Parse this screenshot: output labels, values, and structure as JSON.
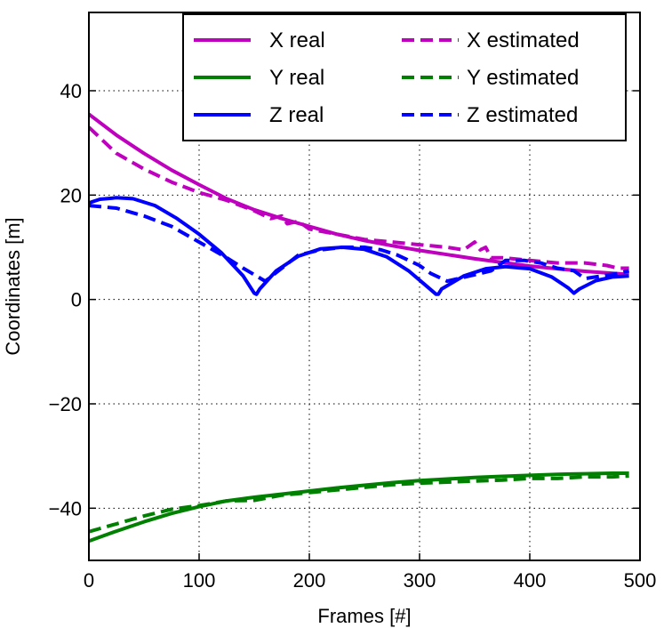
{
  "chart_data": {
    "type": "line",
    "title": "",
    "xlabel": "Frames [#]",
    "ylabel": "Coordinates [m]",
    "xlim": [
      0,
      500
    ],
    "ylim": [
      -50,
      55
    ],
    "xticks": [
      0,
      100,
      200,
      300,
      400,
      500
    ],
    "yticks": [
      -40,
      -20,
      0,
      20,
      40
    ],
    "xtick_labels": [
      "0",
      "100",
      "200",
      "300",
      "400",
      "500"
    ],
    "ytick_labels": [
      "−40",
      "−20",
      "0",
      "20",
      "40"
    ],
    "grid": true,
    "legend_position": "top-right",
    "series": [
      {
        "name": "X real",
        "color": "#bf00bf",
        "style": "solid",
        "x": [
          0,
          25,
          50,
          75,
          100,
          125,
          150,
          175,
          200,
          225,
          250,
          275,
          300,
          325,
          350,
          375,
          400,
          425,
          450,
          475,
          490
        ],
        "y": [
          35.5,
          31.5,
          28.0,
          24.8,
          22.0,
          19.3,
          17.2,
          15.5,
          14.0,
          12.5,
          11.3,
          10.3,
          9.4,
          8.6,
          7.8,
          7.1,
          6.4,
          5.9,
          5.4,
          5.0,
          4.8
        ]
      },
      {
        "name": "X estimated",
        "color": "#bf00bf",
        "style": "dashed",
        "x": [
          0,
          25,
          50,
          75,
          100,
          125,
          150,
          165,
          175,
          180,
          190,
          200,
          225,
          250,
          275,
          300,
          325,
          340,
          350,
          355,
          360,
          365,
          375,
          400,
          425,
          450,
          470,
          480,
          490
        ],
        "y": [
          33.0,
          28.0,
          25.0,
          22.5,
          20.5,
          19.0,
          17.0,
          15.5,
          16.0,
          14.5,
          15.0,
          13.5,
          12.5,
          11.5,
          11.0,
          10.5,
          10.0,
          9.5,
          11.0,
          9.5,
          10.0,
          8.0,
          8.0,
          7.5,
          7.0,
          7.0,
          6.5,
          6.0,
          6.0
        ]
      },
      {
        "name": "Y real",
        "color": "#008000",
        "style": "solid",
        "x": [
          0,
          25,
          50,
          75,
          100,
          125,
          150,
          175,
          200,
          225,
          250,
          275,
          300,
          325,
          350,
          375,
          400,
          425,
          450,
          475,
          490
        ],
        "y": [
          -46.3,
          -44.4,
          -42.6,
          -41.0,
          -39.7,
          -38.6,
          -37.9,
          -37.3,
          -36.7,
          -36.1,
          -35.6,
          -35.1,
          -34.7,
          -34.4,
          -34.1,
          -33.9,
          -33.7,
          -33.5,
          -33.4,
          -33.3,
          -33.3
        ]
      },
      {
        "name": "Y estimated",
        "color": "#008000",
        "style": "dashed",
        "x": [
          0,
          25,
          50,
          75,
          100,
          125,
          150,
          175,
          200,
          225,
          250,
          275,
          300,
          325,
          350,
          375,
          400,
          425,
          450,
          475,
          490
        ],
        "y": [
          -44.5,
          -43.0,
          -41.5,
          -40.2,
          -39.5,
          -38.6,
          -38.5,
          -37.5,
          -37.0,
          -36.5,
          -36.0,
          -35.5,
          -35.2,
          -35.0,
          -34.8,
          -34.6,
          -34.3,
          -34.3,
          -34.0,
          -34.0,
          -33.8
        ]
      },
      {
        "name": "Z real",
        "color": "#0000ff",
        "style": "solid",
        "x": [
          0,
          10,
          25,
          40,
          60,
          80,
          100,
          120,
          140,
          150,
          152,
          155,
          170,
          190,
          210,
          230,
          250,
          270,
          290,
          305,
          315,
          317,
          320,
          340,
          360,
          378,
          400,
          420,
          435,
          440,
          445,
          460,
          475,
          490
        ],
        "y": [
          18.5,
          19.2,
          19.5,
          19.3,
          18.0,
          15.5,
          12.5,
          9.0,
          4.5,
          1.2,
          1.0,
          2.0,
          5.5,
          8.3,
          9.7,
          10.0,
          9.6,
          8.2,
          5.5,
          2.8,
          1.0,
          1.0,
          2.0,
          4.5,
          5.9,
          6.3,
          5.9,
          4.3,
          2.2,
          1.2,
          2.0,
          3.6,
          4.3,
          4.5
        ]
      },
      {
        "name": "Z estimated",
        "color": "#0000ff",
        "style": "dashed",
        "x": [
          0,
          25,
          50,
          75,
          100,
          125,
          140,
          148,
          160,
          175,
          190,
          210,
          230,
          250,
          265,
          280,
          300,
          310,
          325,
          345,
          365,
          378,
          395,
          410,
          425,
          440,
          450,
          465,
          480,
          490
        ],
        "y": [
          18.0,
          17.5,
          16.0,
          14.0,
          11.0,
          8.0,
          6.0,
          5.0,
          3.5,
          6.0,
          8.5,
          9.5,
          10.0,
          10.0,
          9.5,
          8.5,
          6.5,
          5.0,
          3.5,
          4.5,
          5.5,
          7.5,
          7.5,
          7.0,
          6.0,
          5.5,
          4.0,
          4.5,
          5.0,
          5.5
        ]
      }
    ]
  },
  "legend": {
    "col1": [
      "X real",
      "Y real",
      "Z real"
    ],
    "col2": [
      "X estimated",
      "Y estimated",
      "Z estimated"
    ]
  }
}
